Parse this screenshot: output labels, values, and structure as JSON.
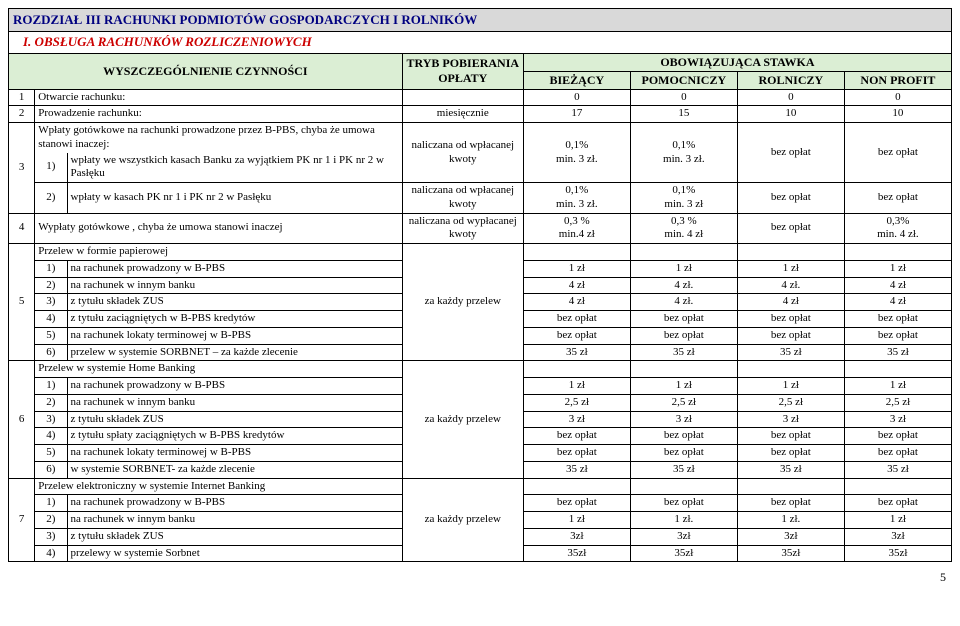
{
  "chapter": "ROZDZIAŁ III   RACHUNKI PODMIOTÓW GOSPODARCZYCH I ROLNIKÓW",
  "section": "I. OBSŁUGA RACHUNKÓW ROZLICZENIOWYCH",
  "columns": {
    "activity": "WYSZCZEGÓLNIENIE CZYNNOŚCI",
    "mode": "TRYB POBIERANIA OPŁATY",
    "rate": "OBOWIĄZUJĄCA STAWKA",
    "cur": "BIEŻĄCY",
    "aux": "POMOCNICZY",
    "agr": "ROLNICZY",
    "non": "NON PROFIT"
  },
  "r1": {
    "n": "1",
    "t": "Otwarcie rachunku:",
    "a": "0",
    "b": "0",
    "c": "0",
    "d": "0"
  },
  "r2": {
    "n": "2",
    "t": "Prowadzenie rachunku:",
    "m": "miesięcznie",
    "a": "17",
    "b": "15",
    "c": "10",
    "d": "10"
  },
  "r3": {
    "n": "3",
    "intro": "Wpłaty gotówkowe na rachunki prowadzone przez B-PBS, chyba że umowa stanowi inaczej:",
    "s1": {
      "n": "1)",
      "t": "wpłaty we wszystkich kasach Banku za wyjątkiem  PK nr 1 i PK nr 2 w Pasłęku",
      "m": "naliczana od wpłacanej kwoty",
      "a": "0,1%\nmin. 3 zł.",
      "b": "0,1%\nmin. 3 zł.",
      "c": "bez opłat",
      "d": "bez opłat"
    },
    "s2": {
      "n": "2)",
      "t": "wpłaty w kasach PK nr 1 i PK nr 2 w Pasłęku",
      "m": "naliczana od wpłacanej kwoty",
      "a": "0,1%\nmin. 3 zł.",
      "b": "0,1%\nmin. 3 zł",
      "c": "bez opłat",
      "d": "bez opłat"
    }
  },
  "r4": {
    "n": "4",
    "t": "Wypłaty gotówkowe , chyba że umowa stanowi inaczej",
    "m": "naliczana od wypłacanej kwoty",
    "a": "0,3 %\nmin.4 zł",
    "b": "0,3 %\nmin. 4 zł",
    "c": "bez opłat",
    "d": "0,3%\nmin. 4 zł."
  },
  "r5": {
    "n": "5",
    "t": "Przelew w formie papierowej",
    "s1": {
      "n": "1)",
      "t": "na rachunek prowadzony w B-PBS",
      "m": "za każdy przelew",
      "a": "1 zł",
      "b": "1 zł",
      "c": "1 zł",
      "d": "1 zł"
    },
    "s2": {
      "n": "2)",
      "t": " na rachunek w innym banku",
      "a": "4 zł",
      "b": "4 zł.",
      "c": "4 zł.",
      "d": "4 zł"
    },
    "s3": {
      "n": "3)",
      "t": "z tytułu składek ZUS",
      "a": "4 zł",
      "b": "4 zł.",
      "c": "4 zł",
      "d": "4 zł"
    },
    "s4": {
      "n": "4)",
      "t": "z tytułu zaciągniętych w B-PBS kredytów",
      "a": "bez opłat",
      "b": "bez opłat",
      "c": "bez opłat",
      "d": "bez opłat"
    },
    "s5": {
      "n": "5)",
      "t": "na rachunek lokaty terminowej w B-PBS",
      "a": "bez opłat",
      "b": "bez opłat",
      "c": "bez opłat",
      "d": "bez opłat"
    },
    "s6": {
      "n": "6)",
      "t": "przelew w systemie SORBNET – za każde zlecenie",
      "a": "35 zł",
      "b": "35 zł",
      "c": "35 zł",
      "d": "35 zł"
    }
  },
  "r6": {
    "n": "6",
    "t": "Przelew w systemie Home Banking",
    "s1": {
      "n": "1)",
      "t": "na rachunek prowadzony w B-PBS",
      "m": "za każdy przelew",
      "a": "1 zł",
      "b": "1 zł",
      "c": "1 zł",
      "d": "1 zł"
    },
    "s2": {
      "n": "2)",
      "t": "na rachunek w innym banku",
      "a": "2,5 zł",
      "b": "2,5 zł",
      "c": "2,5 zł",
      "d": "2,5 zł"
    },
    "s3": {
      "n": "3)",
      "t": "z tytułu składek ZUS",
      "a": "3 zł",
      "b": "3 zł",
      "c": "3 zł",
      "d": "3 zł"
    },
    "s4": {
      "n": "4)",
      "t": "z tytułu spłaty zaciągniętych w B-PBS kredytów",
      "a": "bez opłat",
      "b": "bez opłat",
      "c": "bez opłat",
      "d": "bez opłat"
    },
    "s5": {
      "n": "5)",
      "t": "na rachunek lokaty terminowej w B-PBS",
      "a": "bez opłat",
      "b": "bez opłat",
      "c": "bez opłat",
      "d": "bez opłat"
    },
    "s6": {
      "n": "6)",
      "t": "w systemie SORBNET- za każde zlecenie",
      "a": "35 zł",
      "b": "35 zł",
      "c": "35 zł",
      "d": "35 zł"
    }
  },
  "r7": {
    "n": "7",
    "t": "Przelew elektroniczny w systemie Internet Banking",
    "s1": {
      "n": "1)",
      "t": "na rachunek prowadzony w B-PBS",
      "m": "za każdy przelew",
      "a": "bez opłat",
      "b": "bez opłat",
      "c": "bez opłat",
      "d": "bez opłat"
    },
    "s2": {
      "n": "2)",
      "t": "na rachunek w innym banku",
      "a": "1 zł",
      "b": "1 zł.",
      "c": "1 zł.",
      "d": "1 zł"
    },
    "s3": {
      "n": "3)",
      "t": "z tytułu składek ZUS",
      "a": "3zł",
      "b": "3zł",
      "c": "3zł",
      "d": "3zł"
    },
    "s4": {
      "n": "4)",
      "t": "przelewy w systemie Sorbnet",
      "a": "35zł",
      "b": "35zł",
      "c": "35zł",
      "d": "35zł"
    }
  },
  "page": "5"
}
